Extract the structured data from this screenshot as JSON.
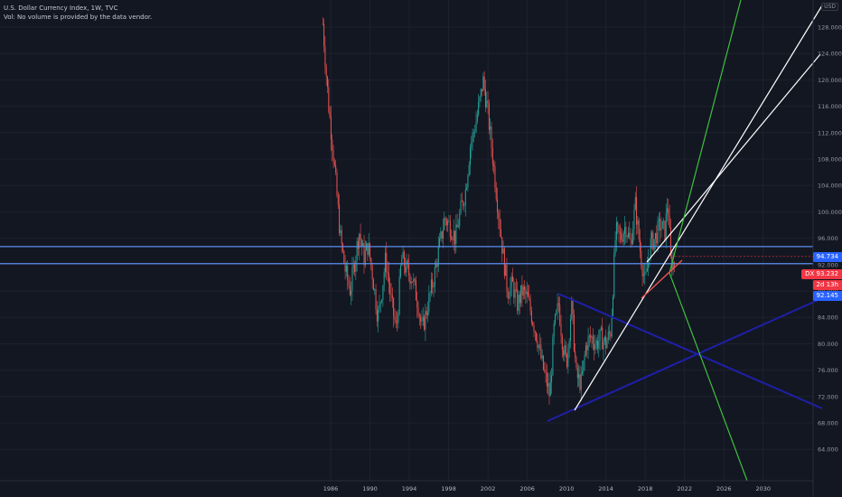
{
  "header": {
    "title": "U.S. Dollar Currency Index, 1W, TVC",
    "volume_note": "Vol: No volume is provided by the data vendor."
  },
  "scale": {
    "currency": "USD"
  },
  "price_labels": [
    {
      "value": "94.734",
      "color": "#2962ff"
    },
    {
      "value": "DX 93.232",
      "color": "#f23645"
    },
    {
      "value": "2d 13h",
      "color": "#f23645"
    },
    {
      "value": "92.145",
      "color": "#2962ff"
    }
  ],
  "chart_data": {
    "type": "line",
    "title": "U.S. Dollar Currency Index, 1W, TVC",
    "x_ticks": [
      "1986",
      "1990",
      "1994",
      "1998",
      "2002",
      "2006",
      "2010",
      "2014",
      "2018",
      "2022",
      "2026",
      "2030"
    ],
    "y_ticks": [
      "128.000",
      "124.000",
      "120.000",
      "116.000",
      "112.000",
      "108.000",
      "104.000",
      "100.000",
      "96.000",
      "92.000",
      "88.000",
      "84.000",
      "80.000",
      "76.000",
      "72.000",
      "68.000",
      "64.000"
    ],
    "xlim": [
      1986,
      2030
    ],
    "ylim": [
      64,
      128
    ],
    "grid": true,
    "series": [
      {
        "x": [
          1985.2,
          1985.5,
          1985.8,
          1986.2,
          1986.6,
          1987.0,
          1987.5,
          1988.0,
          1988.4,
          1988.9,
          1989.4,
          1989.8,
          1990.3,
          1990.8,
          1991.2,
          1991.6,
          1992.2,
          1992.7,
          1993.2,
          1993.8,
          1994.3,
          1994.9,
          1995.3,
          1995.9,
          1996.5,
          1997.1,
          1997.6,
          1998.1,
          1998.7,
          1999.2,
          1999.7,
          2000.2,
          2000.7,
          2001.2,
          2001.5,
          2002.0,
          2002.5,
          2003.0,
          2003.5,
          2004.0,
          2004.5,
          2005.0,
          2005.5,
          2006.0,
          2006.5,
          2007.0,
          2007.5,
          2008.0,
          2008.3,
          2008.7,
          2009.2,
          2009.6,
          2010.0,
          2010.5,
          2011.0,
          2011.5,
          2012.0,
          2012.5,
          2013.0,
          2013.5,
          2014.0,
          2014.5,
          2015.0,
          2015.5,
          2016.0,
          2016.5,
          2017.0,
          2017.5,
          2018.0,
          2018.5,
          2019.0,
          2019.5,
          2020.0,
          2020.3,
          2020.6,
          2021.0
        ],
        "values": [
          128.5,
          122.0,
          116.0,
          110.0,
          103.0,
          96.0,
          91.0,
          88.0,
          92.0,
          97.0,
          93.0,
          95.0,
          90.0,
          84.0,
          88.0,
          93.0,
          86.0,
          82.0,
          93.0,
          91.0,
          90.0,
          86.0,
          82.0,
          86.0,
          90.0,
          95.0,
          99.0,
          98.0,
          96.0,
          100.0,
          103.0,
          110.0,
          113.0,
          117.0,
          120.0,
          115.0,
          108.0,
          101.0,
          94.0,
          88.0,
          89.0,
          86.0,
          88.0,
          87.0,
          84.0,
          81.0,
          77.0,
          74.0,
          72.0,
          82.0,
          86.0,
          80.0,
          77.0,
          86.0,
          75.0,
          74.0,
          80.0,
          81.0,
          80.0,
          81.0,
          80.0,
          82.0,
          97.0,
          96.0,
          98.0,
          95.0,
          101.0,
          94.0,
          89.0,
          95.0,
          96.0,
          98.0,
          97.0,
          102.0,
          92.5,
          92.0
        ]
      }
    ],
    "horizontal_lines": [
      94.734,
      92.145
    ],
    "last_value": 93.232
  }
}
